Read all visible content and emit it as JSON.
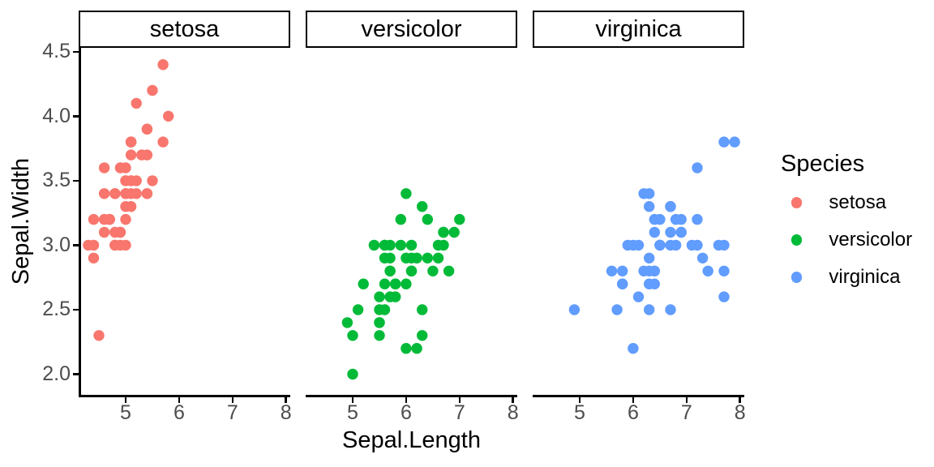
{
  "chart_data": {
    "type": "scatter",
    "title": "",
    "xlabel": "Sepal.Length",
    "ylabel": "Sepal.Width",
    "facets": [
      "setosa",
      "versicolor",
      "virginica"
    ],
    "x_range": [
      4.12,
      8.08
    ],
    "y_range": [
      1.84,
      4.53
    ],
    "x_ticks": [
      5,
      6,
      7,
      8
    ],
    "x_tick_labels": [
      "5",
      "6",
      "7",
      "8"
    ],
    "y_ticks": [
      2.0,
      2.5,
      3.0,
      3.5,
      4.0,
      4.5
    ],
    "y_tick_labels": [
      "2.0",
      "2.5",
      "3.0",
      "3.5",
      "4.0",
      "4.5"
    ],
    "grid": false,
    "legend": {
      "title": "Species",
      "position": "right",
      "items": [
        {
          "label": "setosa",
          "color": "#F8766D"
        },
        {
          "label": "versicolor",
          "color": "#00BA38"
        },
        {
          "label": "virginica",
          "color": "#619CFF"
        }
      ]
    },
    "series": [
      {
        "name": "setosa",
        "color": "#F8766D",
        "points": [
          [
            5.1,
            3.5
          ],
          [
            4.9,
            3.0
          ],
          [
            4.7,
            3.2
          ],
          [
            4.6,
            3.1
          ],
          [
            5.0,
            3.6
          ],
          [
            5.4,
            3.9
          ],
          [
            4.6,
            3.4
          ],
          [
            5.0,
            3.4
          ],
          [
            4.4,
            2.9
          ],
          [
            4.9,
            3.1
          ],
          [
            5.4,
            3.7
          ],
          [
            4.8,
            3.4
          ],
          [
            4.8,
            3.0
          ],
          [
            4.3,
            3.0
          ],
          [
            5.8,
            4.0
          ],
          [
            5.7,
            4.4
          ],
          [
            5.4,
            3.9
          ],
          [
            5.1,
            3.5
          ],
          [
            5.7,
            3.8
          ],
          [
            5.1,
            3.8
          ],
          [
            5.4,
            3.4
          ],
          [
            5.1,
            3.7
          ],
          [
            4.6,
            3.6
          ],
          [
            5.1,
            3.3
          ],
          [
            4.8,
            3.4
          ],
          [
            5.0,
            3.0
          ],
          [
            5.0,
            3.4
          ],
          [
            5.2,
            3.5
          ],
          [
            5.2,
            3.4
          ],
          [
            4.7,
            3.2
          ],
          [
            4.8,
            3.1
          ],
          [
            5.4,
            3.4
          ],
          [
            5.2,
            4.1
          ],
          [
            5.5,
            4.2
          ],
          [
            4.9,
            3.1
          ],
          [
            5.0,
            3.2
          ],
          [
            5.5,
            3.5
          ],
          [
            4.9,
            3.6
          ],
          [
            4.4,
            3.0
          ],
          [
            5.1,
            3.4
          ],
          [
            5.0,
            3.5
          ],
          [
            4.5,
            2.3
          ],
          [
            4.4,
            3.2
          ],
          [
            5.0,
            3.5
          ],
          [
            5.1,
            3.8
          ],
          [
            4.8,
            3.0
          ],
          [
            5.1,
            3.8
          ],
          [
            4.6,
            3.2
          ],
          [
            5.3,
            3.7
          ],
          [
            5.0,
            3.3
          ]
        ]
      },
      {
        "name": "versicolor",
        "color": "#00BA38",
        "points": [
          [
            7.0,
            3.2
          ],
          [
            6.4,
            3.2
          ],
          [
            6.9,
            3.1
          ],
          [
            5.5,
            2.3
          ],
          [
            6.5,
            2.8
          ],
          [
            5.7,
            2.8
          ],
          [
            6.3,
            3.3
          ],
          [
            4.9,
            2.4
          ],
          [
            6.6,
            2.9
          ],
          [
            5.2,
            2.7
          ],
          [
            5.0,
            2.0
          ],
          [
            5.9,
            3.0
          ],
          [
            6.0,
            2.2
          ],
          [
            6.1,
            2.9
          ],
          [
            5.6,
            2.9
          ],
          [
            6.7,
            3.1
          ],
          [
            5.6,
            3.0
          ],
          [
            5.8,
            2.7
          ],
          [
            6.2,
            2.2
          ],
          [
            5.6,
            2.5
          ],
          [
            5.9,
            3.2
          ],
          [
            6.1,
            2.8
          ],
          [
            6.3,
            2.5
          ],
          [
            6.1,
            2.8
          ],
          [
            6.4,
            2.9
          ],
          [
            6.6,
            3.0
          ],
          [
            6.8,
            2.8
          ],
          [
            6.7,
            3.0
          ],
          [
            6.0,
            2.9
          ],
          [
            5.7,
            2.6
          ],
          [
            5.5,
            2.4
          ],
          [
            5.5,
            2.4
          ],
          [
            5.8,
            2.7
          ],
          [
            6.0,
            2.7
          ],
          [
            5.4,
            3.0
          ],
          [
            6.0,
            3.4
          ],
          [
            6.7,
            3.1
          ],
          [
            6.3,
            2.3
          ],
          [
            5.6,
            3.0
          ],
          [
            5.5,
            2.5
          ],
          [
            5.5,
            2.6
          ],
          [
            6.1,
            3.0
          ],
          [
            5.8,
            2.6
          ],
          [
            5.0,
            2.3
          ],
          [
            5.6,
            2.7
          ],
          [
            5.7,
            3.0
          ],
          [
            5.7,
            2.9
          ],
          [
            6.2,
            2.9
          ],
          [
            5.1,
            2.5
          ],
          [
            5.7,
            2.8
          ]
        ]
      },
      {
        "name": "virginica",
        "color": "#619CFF",
        "points": [
          [
            6.3,
            3.3
          ],
          [
            5.8,
            2.7
          ],
          [
            7.1,
            3.0
          ],
          [
            6.3,
            2.9
          ],
          [
            6.5,
            3.0
          ],
          [
            7.6,
            3.0
          ],
          [
            4.9,
            2.5
          ],
          [
            7.3,
            2.9
          ],
          [
            6.7,
            2.5
          ],
          [
            7.2,
            3.6
          ],
          [
            6.5,
            3.2
          ],
          [
            6.4,
            2.7
          ],
          [
            6.8,
            3.0
          ],
          [
            5.7,
            2.5
          ],
          [
            5.8,
            2.8
          ],
          [
            6.4,
            3.2
          ],
          [
            6.5,
            3.0
          ],
          [
            7.7,
            3.8
          ],
          [
            7.7,
            2.6
          ],
          [
            6.0,
            2.2
          ],
          [
            6.9,
            3.2
          ],
          [
            5.6,
            2.8
          ],
          [
            7.7,
            2.8
          ],
          [
            6.3,
            2.7
          ],
          [
            6.7,
            3.3
          ],
          [
            7.2,
            3.2
          ],
          [
            6.2,
            2.8
          ],
          [
            6.1,
            3.0
          ],
          [
            6.4,
            2.8
          ],
          [
            7.2,
            3.0
          ],
          [
            7.4,
            2.8
          ],
          [
            7.9,
            3.8
          ],
          [
            6.4,
            2.8
          ],
          [
            6.3,
            2.8
          ],
          [
            6.1,
            2.6
          ],
          [
            7.7,
            3.0
          ],
          [
            6.3,
            3.4
          ],
          [
            6.4,
            3.1
          ],
          [
            6.0,
            3.0
          ],
          [
            6.9,
            3.1
          ],
          [
            6.7,
            3.1
          ],
          [
            6.9,
            3.1
          ],
          [
            5.8,
            2.7
          ],
          [
            6.8,
            3.2
          ],
          [
            6.7,
            3.3
          ],
          [
            6.7,
            3.0
          ],
          [
            6.3,
            2.5
          ],
          [
            6.5,
            3.0
          ],
          [
            6.2,
            3.4
          ],
          [
            5.9,
            3.0
          ]
        ]
      }
    ]
  },
  "colors": {
    "background": "#FFFFFF",
    "axis_line": "#000000",
    "axis_text": "#4D4D4D",
    "strip_border": "#000000",
    "strip_background": "#FFFFFF"
  }
}
